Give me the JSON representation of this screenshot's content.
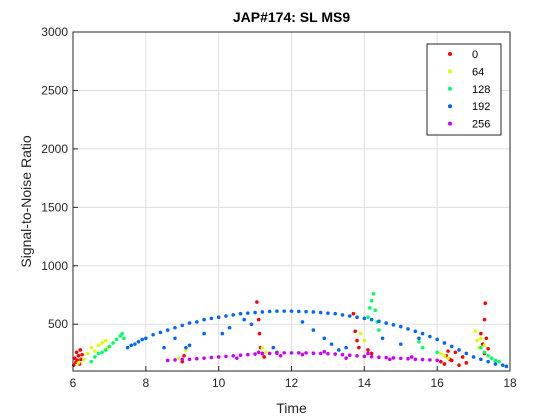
{
  "chart_data": {
    "type": "scatter",
    "title": "JAP#174: SL MS9",
    "xlabel": "Time",
    "ylabel": "Signal-to-Noise Ratio",
    "xlim": [
      6,
      18
    ],
    "ylim": [
      100,
      3000
    ],
    "xticks": [
      6,
      8,
      10,
      12,
      14,
      16,
      18
    ],
    "yticks": [
      500,
      1000,
      1500,
      2000,
      2500,
      3000
    ],
    "grid": true,
    "legend_position": "top-right",
    "series": [
      {
        "name": "0",
        "color": "#ff0000",
        "points": [
          [
            6.02,
            150
          ],
          [
            6.05,
            210
          ],
          [
            6.08,
            175
          ],
          [
            6.1,
            260
          ],
          [
            6.12,
            190
          ],
          [
            6.15,
            230
          ],
          [
            6.18,
            160
          ],
          [
            6.2,
            280
          ],
          [
            6.22,
            200
          ],
          [
            6.25,
            240
          ],
          [
            9.0,
            180
          ],
          [
            9.05,
            230
          ],
          [
            11.05,
            690
          ],
          [
            11.1,
            540
          ],
          [
            11.12,
            420
          ],
          [
            11.15,
            300
          ],
          [
            11.2,
            250
          ],
          [
            11.25,
            220
          ],
          [
            13.7,
            590
          ],
          [
            13.75,
            440
          ],
          [
            13.8,
            360
          ],
          [
            13.85,
            300
          ],
          [
            14.1,
            280
          ],
          [
            14.2,
            250
          ],
          [
            16.1,
            180
          ],
          [
            16.2,
            160
          ],
          [
            16.25,
            230
          ],
          [
            16.3,
            270
          ],
          [
            16.35,
            200
          ],
          [
            16.4,
            190
          ],
          [
            16.5,
            260
          ],
          [
            16.6,
            150
          ],
          [
            16.7,
            220
          ],
          [
            16.8,
            170
          ],
          [
            17.2,
            420
          ],
          [
            17.25,
            330
          ],
          [
            17.3,
            250
          ],
          [
            17.3,
            540
          ],
          [
            17.32,
            680
          ],
          [
            17.35,
            380
          ],
          [
            17.4,
            290
          ]
        ]
      },
      {
        "name": "64",
        "color": "#d9ff00",
        "points": [
          [
            6.15,
            170
          ],
          [
            6.3,
            200
          ],
          [
            6.4,
            250
          ],
          [
            6.5,
            300
          ],
          [
            6.6,
            270
          ],
          [
            6.7,
            320
          ],
          [
            6.8,
            340
          ],
          [
            6.9,
            360
          ],
          [
            6.95,
            300
          ],
          [
            8.9,
            210
          ],
          [
            9.1,
            280
          ],
          [
            11.2,
            300
          ],
          [
            11.3,
            260
          ],
          [
            13.9,
            420
          ],
          [
            14.0,
            360
          ],
          [
            16.1,
            250
          ],
          [
            16.2,
            230
          ],
          [
            16.3,
            210
          ],
          [
            17.05,
            440
          ],
          [
            17.1,
            360
          ],
          [
            17.15,
            300
          ],
          [
            17.2,
            380
          ],
          [
            17.3,
            320
          ]
        ]
      },
      {
        "name": "128",
        "color": "#00ff66",
        "points": [
          [
            6.5,
            180
          ],
          [
            6.6,
            220
          ],
          [
            6.7,
            250
          ],
          [
            6.8,
            260
          ],
          [
            6.9,
            280
          ],
          [
            7.0,
            310
          ],
          [
            7.1,
            340
          ],
          [
            7.2,
            370
          ],
          [
            7.3,
            400
          ],
          [
            7.35,
            420
          ],
          [
            7.4,
            380
          ],
          [
            14.1,
            560
          ],
          [
            14.15,
            640
          ],
          [
            14.2,
            700
          ],
          [
            14.25,
            760
          ],
          [
            14.3,
            620
          ],
          [
            14.35,
            520
          ],
          [
            14.4,
            450
          ],
          [
            15.5,
            350
          ],
          [
            15.6,
            300
          ],
          [
            16.0,
            260
          ],
          [
            17.2,
            300
          ],
          [
            17.3,
            260
          ],
          [
            17.4,
            230
          ],
          [
            17.5,
            210
          ],
          [
            17.6,
            190
          ],
          [
            17.7,
            180
          ]
        ]
      },
      {
        "name": "192",
        "color": "#0066ff",
        "points": [
          [
            7.5,
            300
          ],
          [
            7.6,
            320
          ],
          [
            7.7,
            330
          ],
          [
            7.8,
            350
          ],
          [
            7.9,
            370
          ],
          [
            8.0,
            380
          ],
          [
            8.2,
            410
          ],
          [
            8.4,
            430
          ],
          [
            8.6,
            450
          ],
          [
            8.8,
            470
          ],
          [
            9.0,
            490
          ],
          [
            9.2,
            510
          ],
          [
            9.4,
            520
          ],
          [
            9.6,
            540
          ],
          [
            9.8,
            550
          ],
          [
            10.0,
            560
          ],
          [
            10.2,
            570
          ],
          [
            10.4,
            580
          ],
          [
            10.6,
            590
          ],
          [
            10.8,
            595
          ],
          [
            11.0,
            600
          ],
          [
            11.2,
            605
          ],
          [
            11.4,
            610
          ],
          [
            11.6,
            612
          ],
          [
            11.8,
            612
          ],
          [
            12.0,
            612
          ],
          [
            12.2,
            610
          ],
          [
            12.4,
            608
          ],
          [
            12.6,
            605
          ],
          [
            12.8,
            600
          ],
          [
            13.0,
            595
          ],
          [
            13.2,
            590
          ],
          [
            13.4,
            580
          ],
          [
            13.6,
            570
          ],
          [
            13.8,
            560
          ],
          [
            14.0,
            550
          ],
          [
            14.2,
            540
          ],
          [
            14.4,
            525
          ],
          [
            14.6,
            510
          ],
          [
            14.8,
            495
          ],
          [
            15.0,
            480
          ],
          [
            15.2,
            460
          ],
          [
            15.4,
            440
          ],
          [
            15.6,
            420
          ],
          [
            15.8,
            395
          ],
          [
            16.0,
            370
          ],
          [
            16.2,
            340
          ],
          [
            16.4,
            310
          ],
          [
            16.6,
            280
          ],
          [
            16.8,
            250
          ],
          [
            17.0,
            220
          ],
          [
            17.2,
            200
          ],
          [
            17.4,
            180
          ],
          [
            17.6,
            160
          ],
          [
            17.8,
            150
          ],
          [
            17.9,
            140
          ],
          [
            9.1,
            300
          ],
          [
            9.2,
            320
          ],
          [
            10.1,
            420
          ],
          [
            10.3,
            470
          ],
          [
            10.9,
            500
          ],
          [
            11.5,
            300
          ],
          [
            11.6,
            260
          ],
          [
            12.3,
            520
          ],
          [
            12.6,
            450
          ],
          [
            12.9,
            380
          ],
          [
            13.1,
            330
          ],
          [
            13.3,
            280
          ],
          [
            13.5,
            300
          ],
          [
            14.5,
            380
          ],
          [
            15.0,
            330
          ],
          [
            15.5,
            380
          ],
          [
            8.5,
            300
          ],
          [
            8.8,
            380
          ],
          [
            9.6,
            420
          ],
          [
            10.7,
            540
          ]
        ]
      },
      {
        "name": "256",
        "color": "#cc00ff",
        "points": [
          [
            8.6,
            190
          ],
          [
            8.8,
            195
          ],
          [
            9.0,
            200
          ],
          [
            9.2,
            200
          ],
          [
            9.4,
            205
          ],
          [
            9.6,
            210
          ],
          [
            9.8,
            215
          ],
          [
            10.0,
            220
          ],
          [
            10.2,
            225
          ],
          [
            10.4,
            230
          ],
          [
            10.6,
            235
          ],
          [
            10.8,
            240
          ],
          [
            11.0,
            245
          ],
          [
            11.2,
            248
          ],
          [
            11.4,
            250
          ],
          [
            11.6,
            252
          ],
          [
            11.8,
            255
          ],
          [
            12.0,
            255
          ],
          [
            12.2,
            255
          ],
          [
            12.4,
            255
          ],
          [
            12.6,
            252
          ],
          [
            12.8,
            250
          ],
          [
            13.0,
            248
          ],
          [
            13.2,
            245
          ],
          [
            13.4,
            240
          ],
          [
            13.6,
            235
          ],
          [
            13.8,
            230
          ],
          [
            14.0,
            225
          ],
          [
            14.2,
            222
          ],
          [
            14.4,
            218
          ],
          [
            14.6,
            215
          ],
          [
            14.8,
            212
          ],
          [
            15.0,
            208
          ],
          [
            15.2,
            205
          ],
          [
            15.4,
            200
          ],
          [
            15.6,
            198
          ],
          [
            15.8,
            195
          ],
          [
            16.0,
            192
          ],
          [
            10.5,
            210
          ],
          [
            11.1,
            260
          ],
          [
            11.7,
            230
          ],
          [
            12.3,
            240
          ],
          [
            12.9,
            265
          ],
          [
            13.5,
            210
          ],
          [
            14.1,
            250
          ],
          [
            14.7,
            200
          ],
          [
            15.3,
            220
          ]
        ]
      }
    ]
  }
}
